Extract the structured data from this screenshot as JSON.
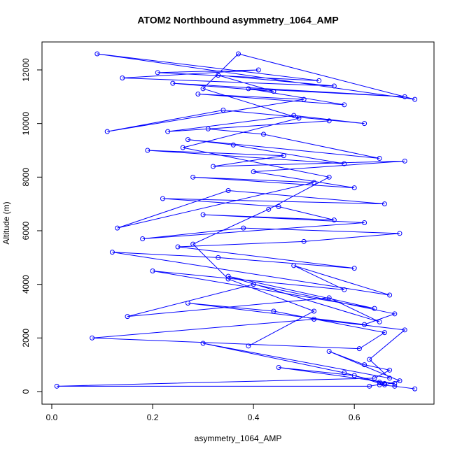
{
  "chart_data": {
    "type": "line",
    "title": "ATOM2 Northbound asymmetry_1064_AMP",
    "x_label": "asymmetry_1064_AMP",
    "y_label": "Altitude (m)",
    "color": "#0000ff",
    "markers": true,
    "x": [
      0.72,
      0.68,
      0.65,
      0.66,
      0.63,
      0.01,
      0.64,
      0.67,
      0.62,
      0.55,
      0.69,
      0.66,
      0.6,
      0.45,
      0.68,
      0.65,
      0.58,
      0.3,
      0.67,
      0.63,
      0.7,
      0.52,
      0.08,
      0.61,
      0.66,
      0.44,
      0.27,
      0.62,
      0.68,
      0.4,
      0.15,
      0.55,
      0.65,
      0.35,
      0.64,
      0.2,
      0.58,
      0.48,
      0.67,
      0.12,
      0.33,
      0.6,
      0.25,
      0.5,
      0.69,
      0.38,
      0.18,
      0.62,
      0.3,
      0.56,
      0.45,
      0.22,
      0.66,
      0.35,
      0.13,
      0.52,
      0.28,
      0.6,
      0.4,
      0.7,
      0.32,
      0.46,
      0.19,
      0.58,
      0.36,
      0.27,
      0.65,
      0.42,
      0.31,
      0.55,
      0.23,
      0.48,
      0.62,
      0.34,
      0.11,
      0.5,
      0.29,
      0.58,
      0.39,
      0.7,
      0.24,
      0.44,
      0.33,
      0.56,
      0.14,
      0.41,
      0.21,
      0.53,
      0.09,
      0.72,
      0.37,
      0.3,
      0.49,
      0.26,
      0.55,
      0.43,
      0.28,
      0.35,
      0.52,
      0.39
    ],
    "values": [
      100,
      200,
      250,
      300,
      200,
      200,
      500,
      800,
      1000,
      1500,
      400,
      250,
      600,
      900,
      300,
      350,
      700,
      1800,
      500,
      1200,
      2300,
      2700,
      2000,
      1600,
      2200,
      3000,
      3300,
      2500,
      2900,
      4000,
      2800,
      3500,
      2600,
      4300,
      3100,
      4500,
      3800,
      4700,
      3600,
      5200,
      5000,
      4600,
      5400,
      5600,
      5900,
      6100,
      5700,
      6300,
      6600,
      6400,
      6900,
      7200,
      7000,
      7500,
      6100,
      7800,
      8000,
      7600,
      8200,
      8600,
      8400,
      8800,
      9000,
      8500,
      9200,
      9400,
      8700,
      9600,
      9800,
      10100,
      9700,
      10300,
      10000,
      10500,
      9700,
      10900,
      11100,
      10700,
      11300,
      11000,
      11500,
      11200,
      11800,
      11400,
      11700,
      12000,
      11900,
      11600,
      12600,
      10900,
      12600,
      11300,
      10200,
      9100,
      8000,
      6800,
      5500,
      4200,
      3000,
      1700
    ],
    "xlim": [
      -0.0194,
      0.758
    ],
    "ylim": [
      -470,
      13043
    ],
    "xticks": [
      {
        "value": 0,
        "label": "0.0"
      },
      0.2,
      0.4,
      0.6
    ],
    "yticks": [
      0,
      2000,
      4000,
      6000,
      8000,
      10000,
      12000
    ]
  }
}
